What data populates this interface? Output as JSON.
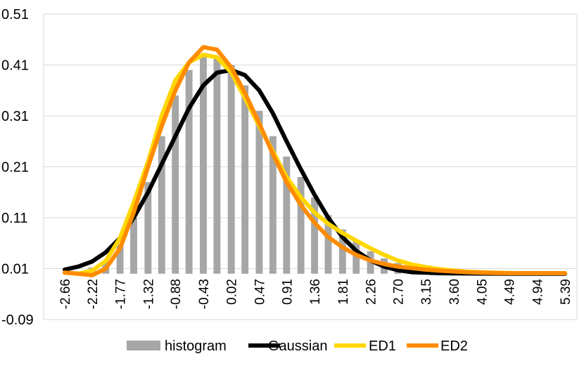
{
  "chart_data": {
    "type": "bar",
    "ylim": [
      -0.09,
      0.51
    ],
    "y_ticks": [
      "0.51",
      "0.41",
      "0.31",
      "0.21",
      "0.11",
      "0.01",
      "-0.09"
    ],
    "x_tick_labels": [
      "-2.66",
      "-2.22",
      "-1.77",
      "-1.32",
      "-0.88",
      "-0.43",
      "0.02",
      "0.47",
      "0.91",
      "1.36",
      "1.81",
      "2.26",
      "2.70",
      "3.15",
      "3.60",
      "4.05",
      "4.49",
      "4.94",
      "5.39"
    ],
    "x": [
      -2.66,
      -2.44,
      -2.22,
      -2.0,
      -1.77,
      -1.55,
      -1.32,
      -1.1,
      -0.88,
      -0.66,
      -0.43,
      -0.21,
      0.02,
      0.24,
      0.47,
      0.69,
      0.91,
      1.14,
      1.36,
      1.58,
      1.81,
      2.03,
      2.26,
      2.48,
      2.7,
      2.93,
      3.15,
      3.37,
      3.6,
      3.82,
      4.05,
      4.27,
      4.49,
      4.72,
      4.94,
      5.16,
      5.39
    ],
    "grid": true,
    "legend_position": "bottom",
    "series": [
      {
        "name": "histogram",
        "kind": "bar",
        "color": "#a6a6a6",
        "values": [
          0.0,
          0.004,
          0.012,
          0.025,
          0.058,
          0.11,
          0.18,
          0.27,
          0.35,
          0.4,
          0.43,
          0.425,
          0.41,
          0.37,
          0.32,
          0.27,
          0.23,
          0.19,
          0.15,
          0.115,
          0.087,
          0.063,
          0.044,
          0.03,
          0.021,
          0.015,
          0.011,
          0.008,
          0.006,
          0.004,
          0.003,
          0.002,
          0.0015,
          0.001,
          0.001,
          0.0008,
          0.0005
        ]
      },
      {
        "name": "Gaussian",
        "kind": "line",
        "color": "#000000",
        "values": [
          0.008,
          0.014,
          0.024,
          0.042,
          0.07,
          0.11,
          0.16,
          0.215,
          0.27,
          0.325,
          0.37,
          0.395,
          0.4,
          0.39,
          0.36,
          0.315,
          0.26,
          0.205,
          0.155,
          0.11,
          0.072,
          0.045,
          0.026,
          0.014,
          0.007,
          0.003,
          0.002,
          0.001,
          0.0008,
          0.0005,
          0.0003,
          0.0002,
          0.0001,
          0.0001,
          0.0001,
          0.0001,
          0.0001
        ]
      },
      {
        "name": "ED1",
        "kind": "line",
        "color": "#ffd700",
        "values": [
          0.002,
          0.0,
          0.006,
          0.025,
          0.07,
          0.14,
          0.22,
          0.31,
          0.38,
          0.415,
          0.43,
          0.425,
          0.395,
          0.345,
          0.29,
          0.24,
          0.19,
          0.15,
          0.12,
          0.098,
          0.08,
          0.065,
          0.05,
          0.037,
          0.026,
          0.018,
          0.013,
          0.009,
          0.006,
          0.004,
          0.003,
          0.002,
          0.0015,
          0.001,
          0.001,
          0.001,
          0.001
        ]
      },
      {
        "name": "ED2",
        "kind": "line",
        "color": "#ff8c00",
        "values": [
          0.002,
          0.0,
          -0.003,
          0.01,
          0.05,
          0.12,
          0.21,
          0.29,
          0.36,
          0.415,
          0.445,
          0.44,
          0.405,
          0.355,
          0.295,
          0.235,
          0.18,
          0.135,
          0.1,
          0.072,
          0.052,
          0.037,
          0.026,
          0.019,
          0.014,
          0.011,
          0.008,
          0.006,
          0.0045,
          0.003,
          0.002,
          0.0015,
          0.001,
          0.001,
          0.001,
          0.001,
          0.001
        ]
      }
    ]
  }
}
